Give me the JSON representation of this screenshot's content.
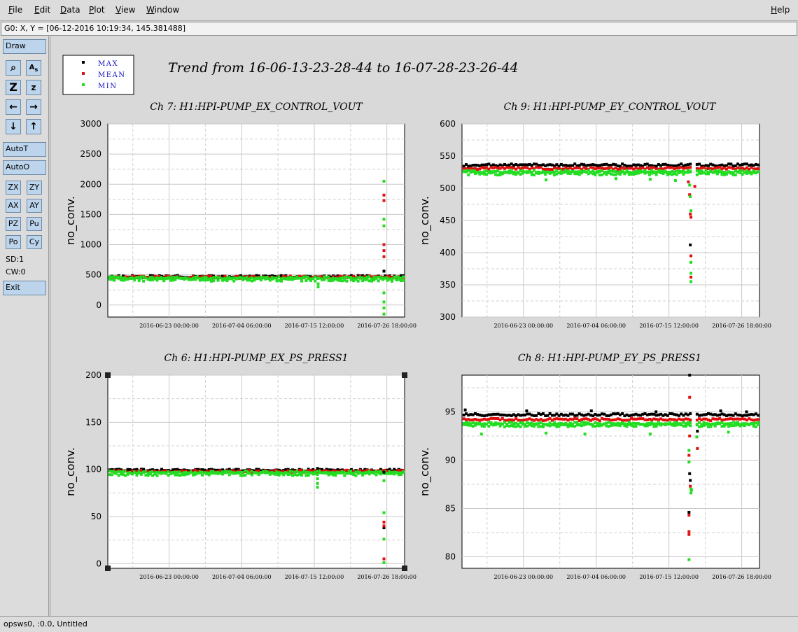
{
  "menu": {
    "file": "File",
    "edit": "Edit",
    "data": "Data",
    "plot": "Plot",
    "view": "View",
    "window": "Window",
    "help": "Help"
  },
  "coord": "G0: X, Y = [06-12-2016 10:19:34, 145.381488]",
  "toolbar": {
    "draw": "Draw",
    "autot": "AutoT",
    "autoo": "AutoO",
    "zx": "ZX",
    "zy": "ZY",
    "ax": "AX",
    "ay": "AY",
    "pz": "PZ",
    "pu": "Pu",
    "po": "Po",
    "cy": "Cy",
    "sd": "SD:1",
    "cw": "CW:0",
    "exit": "Exit"
  },
  "legend": [
    "MAX",
    "MEAN",
    "MIN"
  ],
  "colors": {
    "max": "#000000",
    "mean": "#e01010",
    "min": "#22dd22",
    "title": "#000000",
    "legend_text": "#1010c0"
  },
  "trend_title": "Trend from 16-06-13-23-28-44 to 16-07-28-23-26-44",
  "status": "opsws0, :0.0, Untitled",
  "chart_data": [
    {
      "type": "scatter",
      "title": "Ch 7: H1:HPI-PUMP_EX_CONTROL_VOUT",
      "ylabel": "no_conv.",
      "xlabel": "",
      "ylim": [
        -200,
        3000
      ],
      "yticks": [
        0,
        500,
        1000,
        1500,
        2000,
        2500,
        3000
      ],
      "xticks": [
        "2016-06-23 00:00:00",
        "2016-07-04 06:00:00",
        "2016-07-15 12:00:00",
        "2016-07-26 18:00:00"
      ],
      "xrange": [
        0,
        46
      ],
      "xtick_pos": [
        9.5,
        20.75,
        32,
        43.25
      ],
      "grid": true,
      "baseline": {
        "max": 470,
        "mean": 460,
        "min": 450
      },
      "outliers": [
        {
          "series": "min",
          "x": 32.6,
          "y": 300
        },
        {
          "series": "min",
          "x": 32.6,
          "y": 350
        },
        {
          "series": "min",
          "x": 42.8,
          "y": 2050
        },
        {
          "series": "mean",
          "x": 42.8,
          "y": 1820
        },
        {
          "series": "mean",
          "x": 42.8,
          "y": 1730
        },
        {
          "series": "min",
          "x": 42.8,
          "y": 1420
        },
        {
          "series": "min",
          "x": 42.8,
          "y": 1310
        },
        {
          "series": "mean",
          "x": 42.8,
          "y": 1000
        },
        {
          "series": "mean",
          "x": 42.8,
          "y": 900
        },
        {
          "series": "mean",
          "x": 42.8,
          "y": 800
        },
        {
          "series": "max",
          "x": 42.8,
          "y": 560
        },
        {
          "series": "min",
          "x": 42.8,
          "y": 200
        },
        {
          "series": "min",
          "x": 42.8,
          "y": 50
        },
        {
          "series": "min",
          "x": 42.8,
          "y": -50
        },
        {
          "series": "min",
          "x": 42.8,
          "y": -150
        }
      ]
    },
    {
      "type": "scatter",
      "title": "Ch 9: H1:HPI-PUMP_EY_CONTROL_VOUT",
      "ylabel": "no_conv.",
      "xlabel": "",
      "ylim": [
        300,
        600
      ],
      "yticks": [
        300,
        350,
        400,
        450,
        500,
        550,
        600
      ],
      "xticks": [
        "2016-06-23 00:00:00",
        "2016-07-04 06:00:00",
        "2016-07-15 12:00:00",
        "2016-07-26 18:00:00"
      ],
      "xrange": [
        0,
        46
      ],
      "xtick_pos": [
        9.5,
        20.75,
        32,
        43.25
      ],
      "grid": true,
      "baseline": {
        "max": 536,
        "mean": 531,
        "min": 526
      },
      "outliers": [
        {
          "series": "mean",
          "x": 35.0,
          "y": 510
        },
        {
          "series": "min",
          "x": 35.2,
          "y": 505
        },
        {
          "series": "mean",
          "x": 35.2,
          "y": 490
        },
        {
          "series": "min",
          "x": 35.3,
          "y": 487
        },
        {
          "series": "mean",
          "x": 35.3,
          "y": 460
        },
        {
          "series": "min",
          "x": 35.4,
          "y": 465
        },
        {
          "series": "mean",
          "x": 35.4,
          "y": 455
        },
        {
          "series": "max",
          "x": 35.3,
          "y": 412
        },
        {
          "series": "mean",
          "x": 35.4,
          "y": 395
        },
        {
          "series": "min",
          "x": 35.4,
          "y": 385
        },
        {
          "series": "min",
          "x": 35.4,
          "y": 368
        },
        {
          "series": "mean",
          "x": 35.4,
          "y": 362
        },
        {
          "series": "min",
          "x": 35.4,
          "y": 355
        },
        {
          "series": "mean",
          "x": 36.0,
          "y": 503
        },
        {
          "series": "min",
          "x": 13.0,
          "y": 513
        },
        {
          "series": "min",
          "x": 23.8,
          "y": 515
        },
        {
          "series": "min",
          "x": 29.1,
          "y": 514
        },
        {
          "series": "min",
          "x": 33.0,
          "y": 512
        }
      ]
    },
    {
      "type": "scatter",
      "title": "Ch 6: H1:HPI-PUMP_EX_PS_PRESS1",
      "ylabel": "no_conv.",
      "xlabel": "",
      "ylim": [
        -5,
        200
      ],
      "yticks": [
        0,
        50,
        100,
        150,
        200
      ],
      "xticks": [
        "2016-06-23 00:00:00",
        "2016-07-04 06:00:00",
        "2016-07-15 12:00:00",
        "2016-07-26 18:00:00"
      ],
      "xrange": [
        0,
        46
      ],
      "xtick_pos": [
        9.5,
        20.75,
        32,
        43.25
      ],
      "grid": true,
      "baseline": {
        "max": 99,
        "mean": 98,
        "min": 97
      },
      "outliers": [
        {
          "series": "max",
          "x": 32.5,
          "y": 101
        },
        {
          "series": "min",
          "x": 32.5,
          "y": 90
        },
        {
          "series": "min",
          "x": 32.5,
          "y": 85
        },
        {
          "series": "min",
          "x": 32.5,
          "y": 81
        },
        {
          "series": "max",
          "x": 42.8,
          "y": 97
        },
        {
          "series": "min",
          "x": 42.8,
          "y": 88
        },
        {
          "series": "min",
          "x": 42.8,
          "y": 54
        },
        {
          "series": "mean",
          "x": 42.8,
          "y": 44
        },
        {
          "series": "max",
          "x": 42.8,
          "y": 38
        },
        {
          "series": "mean",
          "x": 42.8,
          "y": 40
        },
        {
          "series": "min",
          "x": 42.8,
          "y": 26
        },
        {
          "series": "mean",
          "x": 42.8,
          "y": 5
        },
        {
          "series": "min",
          "x": 42.8,
          "y": 1
        }
      ]
    },
    {
      "type": "scatter",
      "title": "Ch 8: H1:HPI-PUMP_EY_PS_PRESS1",
      "ylabel": "no_conv.",
      "xlabel": "",
      "ylim": [
        78.8,
        98.8
      ],
      "yticks": [
        80,
        85,
        90,
        95
      ],
      "xticks": [
        "2016-06-23 00:00:00",
        "2016-07-04 06:00:00",
        "2016-07-15 12:00:00",
        "2016-07-26 18:00:00"
      ],
      "xrange": [
        0,
        46
      ],
      "xtick_pos": [
        9.5,
        20.75,
        32,
        43.25
      ],
      "grid": true,
      "baseline": {
        "max": 94.7,
        "mean": 94.2,
        "min": 93.8
      },
      "outliers": [
        {
          "series": "max",
          "x": 35.2,
          "y": 98.8
        },
        {
          "series": "mean",
          "x": 35.2,
          "y": 96.5
        },
        {
          "series": "mean",
          "x": 35.2,
          "y": 92.5
        },
        {
          "series": "min",
          "x": 35.1,
          "y": 91.0
        },
        {
          "series": "mean",
          "x": 35.1,
          "y": 90.5
        },
        {
          "series": "min",
          "x": 35.1,
          "y": 89.8
        },
        {
          "series": "max",
          "x": 35.2,
          "y": 88.6
        },
        {
          "series": "max",
          "x": 35.3,
          "y": 87.9
        },
        {
          "series": "mean",
          "x": 35.3,
          "y": 87.3
        },
        {
          "series": "min",
          "x": 35.4,
          "y": 87.0
        },
        {
          "series": "min",
          "x": 35.4,
          "y": 86.6
        },
        {
          "series": "min",
          "x": 35.5,
          "y": 86.9
        },
        {
          "series": "max",
          "x": 35.1,
          "y": 84.6
        },
        {
          "series": "mean",
          "x": 35.1,
          "y": 84.3
        },
        {
          "series": "mean",
          "x": 35.1,
          "y": 82.6
        },
        {
          "series": "mean",
          "x": 35.1,
          "y": 82.3
        },
        {
          "series": "min",
          "x": 35.1,
          "y": 79.7
        },
        {
          "series": "mean",
          "x": 36.4,
          "y": 91.2
        },
        {
          "series": "max",
          "x": 36.4,
          "y": 93.0
        },
        {
          "series": "min",
          "x": 36.3,
          "y": 92.4
        },
        {
          "series": "min",
          "x": 3.0,
          "y": 92.7
        },
        {
          "series": "min",
          "x": 13.0,
          "y": 92.8
        },
        {
          "series": "min",
          "x": 19.0,
          "y": 92.7
        },
        {
          "series": "min",
          "x": 29.1,
          "y": 92.7
        },
        {
          "series": "min",
          "x": 41.2,
          "y": 92.9
        },
        {
          "series": "max",
          "x": 0.5,
          "y": 95.2
        },
        {
          "series": "max",
          "x": 10.0,
          "y": 95.1
        },
        {
          "series": "max",
          "x": 20.0,
          "y": 95.1
        },
        {
          "series": "max",
          "x": 30.0,
          "y": 95.0
        },
        {
          "series": "max",
          "x": 40.0,
          "y": 95.1
        },
        {
          "series": "max",
          "x": 44.0,
          "y": 95.0
        }
      ]
    }
  ]
}
